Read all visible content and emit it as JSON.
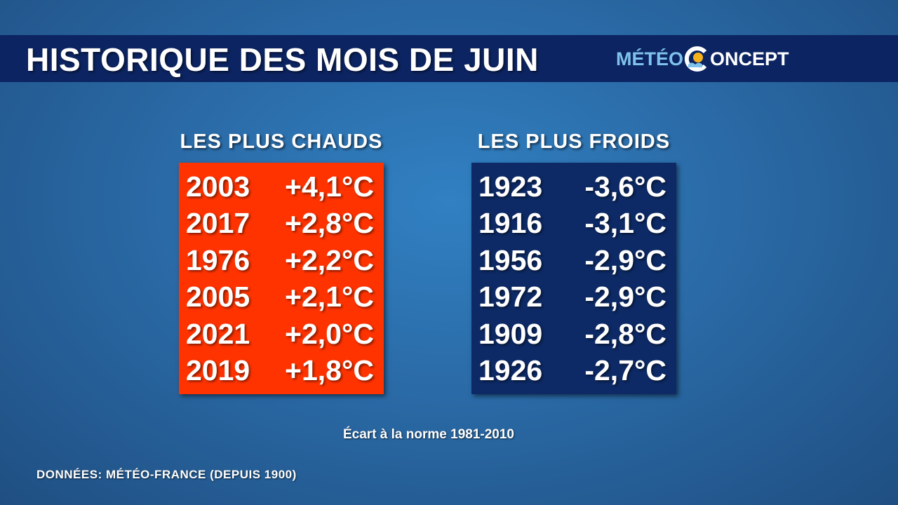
{
  "header": {
    "title": "HISTORIQUE DES MOIS DE JUIN",
    "logo": {
      "left": "MÉTÉO",
      "right": "ONCEPT"
    }
  },
  "tables": [
    {
      "title": "LES PLUS CHAUDS",
      "rows": [
        [
          "2003",
          "+4,1°C"
        ],
        [
          "2017",
          "+2,8°C"
        ],
        [
          "1976",
          "+2,2°C"
        ],
        [
          "2005",
          "+2,1°C"
        ],
        [
          "2021",
          "+2,0°C"
        ],
        [
          "2019",
          "+1,8°C"
        ]
      ]
    },
    {
      "title": "LES PLUS FROIDS",
      "rows": [
        [
          "1923",
          "-3,6°C"
        ],
        [
          "1916",
          "-3,1°C"
        ],
        [
          "1956",
          "-2,9°C"
        ],
        [
          "1972",
          "-2,9°C"
        ],
        [
          "1909",
          "-2,8°C"
        ],
        [
          "1926",
          "-2,7°C"
        ]
      ]
    }
  ],
  "note": "Écart à la norme 1981-2010",
  "source": "DONNÉES: MÉTÉO-FRANCE (DEPUIS 1900)"
}
